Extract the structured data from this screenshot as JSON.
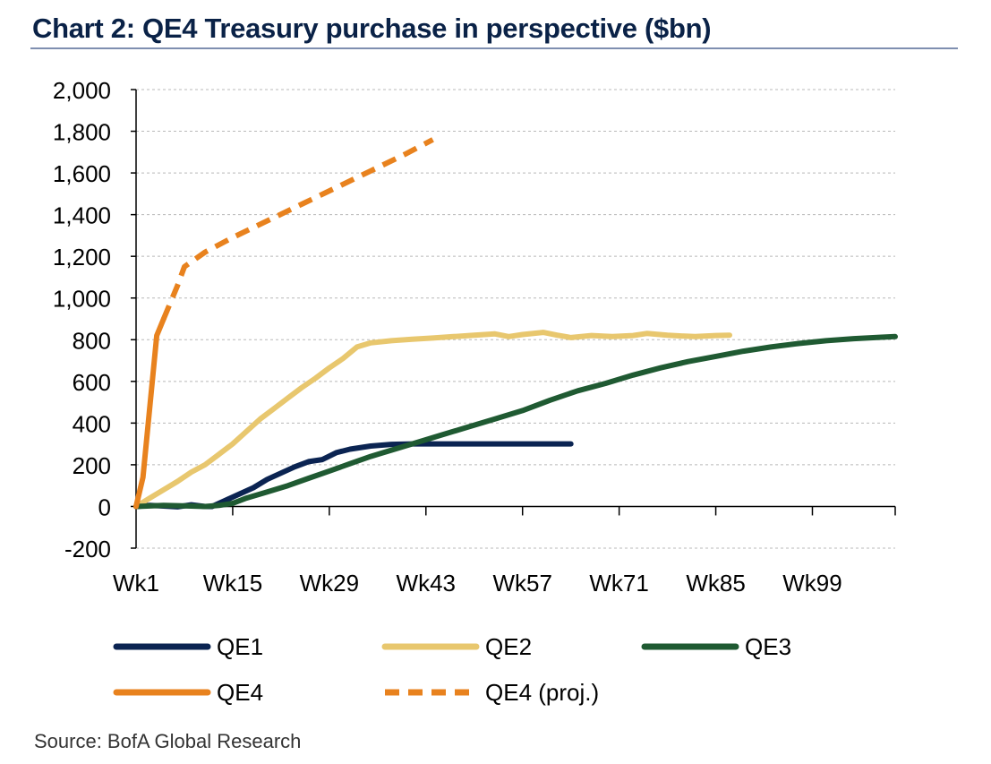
{
  "title": "Chart 2: QE4 Treasury purchase in perspective ($bn)",
  "source": "Source: BofA Global Research",
  "chart_data": {
    "type": "line",
    "title": "Chart 2: QE4 Treasury purchase in perspective ($bn)",
    "xlabel": "",
    "ylabel": "",
    "ylim": [
      -200,
      2000
    ],
    "yticks": [
      -200,
      0,
      200,
      400,
      600,
      800,
      1000,
      1200,
      1400,
      1600,
      1800,
      2000
    ],
    "ytick_labels": [
      "-200",
      "0",
      "200",
      "400",
      "600",
      "800",
      "1,000",
      "1,200",
      "1,400",
      "1,600",
      "1,800",
      "2,000"
    ],
    "xlim": [
      1,
      111
    ],
    "xticks": [
      1,
      15,
      29,
      43,
      57,
      71,
      85,
      99
    ],
    "xtick_labels": [
      "Wk1",
      "Wk15",
      "Wk29",
      "Wk43",
      "Wk57",
      "Wk71",
      "Wk85",
      "Wk99"
    ],
    "grid": "horizontal dashed",
    "legend": "bottom",
    "series": [
      {
        "name": "QE1",
        "color": "#0b2452",
        "dash": "solid",
        "points": [
          [
            1,
            0
          ],
          [
            3,
            5
          ],
          [
            5,
            2
          ],
          [
            7,
            -2
          ],
          [
            9,
            8
          ],
          [
            11,
            0
          ],
          [
            12,
            0
          ],
          [
            14,
            30
          ],
          [
            16,
            60
          ],
          [
            18,
            90
          ],
          [
            20,
            130
          ],
          [
            22,
            160
          ],
          [
            24,
            190
          ],
          [
            26,
            215
          ],
          [
            28,
            225
          ],
          [
            30,
            258
          ],
          [
            32,
            275
          ],
          [
            35,
            290
          ],
          [
            38,
            298
          ],
          [
            41,
            300
          ],
          [
            45,
            300
          ],
          [
            50,
            300
          ],
          [
            55,
            300
          ],
          [
            60,
            300
          ],
          [
            64,
            300
          ]
        ]
      },
      {
        "name": "QE2",
        "color": "#e8c76e",
        "dash": "solid",
        "points": [
          [
            1,
            0
          ],
          [
            3,
            40
          ],
          [
            5,
            80
          ],
          [
            7,
            120
          ],
          [
            9,
            165
          ],
          [
            11,
            200
          ],
          [
            13,
            250
          ],
          [
            15,
            300
          ],
          [
            17,
            360
          ],
          [
            19,
            420
          ],
          [
            21,
            470
          ],
          [
            23,
            520
          ],
          [
            25,
            570
          ],
          [
            27,
            615
          ],
          [
            29,
            665
          ],
          [
            31,
            710
          ],
          [
            33,
            765
          ],
          [
            35,
            785
          ],
          [
            38,
            795
          ],
          [
            41,
            802
          ],
          [
            44,
            808
          ],
          [
            47,
            815
          ],
          [
            50,
            822
          ],
          [
            53,
            828
          ],
          [
            55,
            815
          ],
          [
            57,
            825
          ],
          [
            60,
            835
          ],
          [
            62,
            822
          ],
          [
            64,
            810
          ],
          [
            67,
            820
          ],
          [
            70,
            815
          ],
          [
            73,
            820
          ],
          [
            75,
            830
          ],
          [
            78,
            822
          ],
          [
            80,
            818
          ],
          [
            82,
            815
          ],
          [
            85,
            820
          ],
          [
            87,
            822
          ]
        ]
      },
      {
        "name": "QE3",
        "color": "#1f5a32",
        "dash": "solid",
        "points": [
          [
            1,
            0
          ],
          [
            5,
            5
          ],
          [
            9,
            2
          ],
          [
            11,
            0
          ],
          [
            13,
            5
          ],
          [
            15,
            15
          ],
          [
            17,
            40
          ],
          [
            20,
            70
          ],
          [
            23,
            100
          ],
          [
            26,
            135
          ],
          [
            29,
            170
          ],
          [
            32,
            205
          ],
          [
            35,
            240
          ],
          [
            38,
            270
          ],
          [
            41,
            300
          ],
          [
            45,
            340
          ],
          [
            49,
            380
          ],
          [
            53,
            420
          ],
          [
            57,
            460
          ],
          [
            61,
            510
          ],
          [
            65,
            555
          ],
          [
            69,
            590
          ],
          [
            73,
            630
          ],
          [
            77,
            665
          ],
          [
            81,
            695
          ],
          [
            85,
            720
          ],
          [
            89,
            745
          ],
          [
            93,
            765
          ],
          [
            97,
            782
          ],
          [
            101,
            795
          ],
          [
            105,
            805
          ],
          [
            109,
            812
          ],
          [
            111,
            815
          ]
        ]
      },
      {
        "name": "QE4",
        "color": "#e8821e",
        "dash": "solid",
        "points": [
          [
            1,
            0
          ],
          [
            2,
            140
          ],
          [
            4,
            820
          ],
          [
            5,
            900
          ]
        ]
      },
      {
        "name": "QE4 (proj.)",
        "color": "#e8821e",
        "dash": "dashed",
        "points": [
          [
            5,
            900
          ],
          [
            7,
            1060
          ],
          [
            8,
            1150
          ],
          [
            11,
            1220
          ],
          [
            15,
            1290
          ],
          [
            20,
            1370
          ],
          [
            25,
            1450
          ],
          [
            30,
            1530
          ],
          [
            35,
            1610
          ],
          [
            40,
            1690
          ],
          [
            44,
            1760
          ]
        ]
      }
    ]
  }
}
